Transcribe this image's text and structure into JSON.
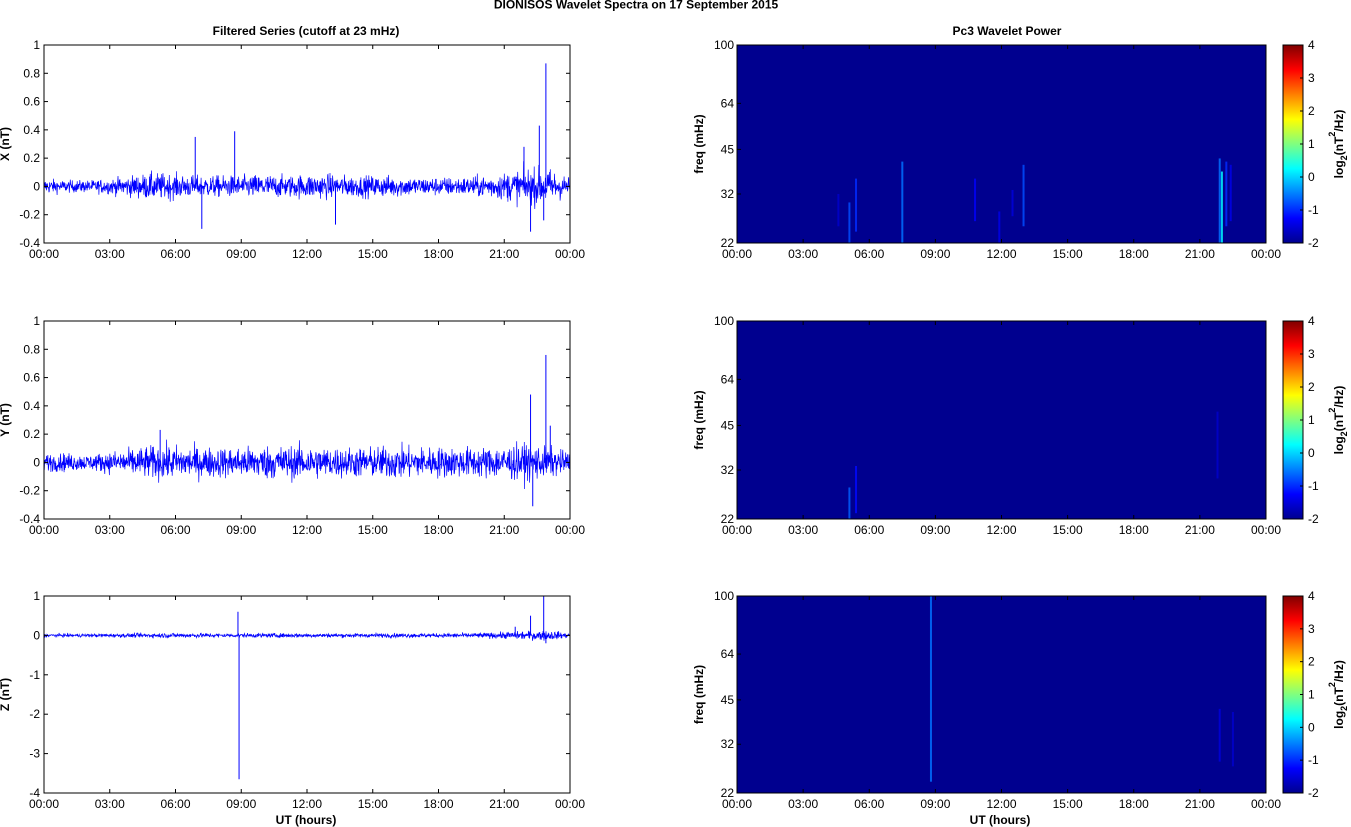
{
  "figure": {
    "title": "DIONISOS Wavelet Spectra on 17 September 2015",
    "left_title": "Filtered Series (cutoff at 23 mHz)",
    "right_title": "Pc3 Wavelet Power",
    "xlabel": "UT (hours)",
    "colorbar_label_base": "log",
    "colorbar_label_sub": "2",
    "colorbar_label_mid": "(nT",
    "colorbar_label_sup": "2",
    "colorbar_label_end": "/Hz)",
    "freq_label": "freq (mHz)"
  },
  "colors": {
    "trace": "#0000ff",
    "spectrogram_background": "#00008f",
    "axes": "#000000"
  },
  "chart_data": [
    {
      "type": "line",
      "panel": "X",
      "ylabel": "X (nT)",
      "xlim": [
        "00:00",
        "24:00"
      ],
      "xticks": [
        "00:00",
        "03:00",
        "06:00",
        "09:00",
        "12:00",
        "15:00",
        "18:00",
        "21:00",
        "00:00"
      ],
      "ylim": [
        -0.4,
        1
      ],
      "yticks": [
        "-0.4",
        "-0.2",
        "0",
        "0.2",
        "0.4",
        "0.6",
        "0.8",
        "1"
      ],
      "envelope": {
        "hours": [
          0,
          1,
          2,
          3,
          4,
          5,
          6,
          7,
          8,
          9,
          10,
          11,
          12,
          13,
          14,
          15,
          16,
          17,
          18,
          19,
          20,
          21,
          22,
          23,
          24
        ],
        "amplitude": [
          0.05,
          0.04,
          0.04,
          0.05,
          0.07,
          0.09,
          0.08,
          0.07,
          0.07,
          0.07,
          0.08,
          0.07,
          0.08,
          0.08,
          0.07,
          0.07,
          0.07,
          0.06,
          0.06,
          0.06,
          0.07,
          0.09,
          0.12,
          0.12,
          0.06
        ]
      },
      "spikes": [
        {
          "hour": 6.9,
          "value": 0.35
        },
        {
          "hour": 7.2,
          "value": -0.3
        },
        {
          "hour": 8.7,
          "value": 0.39
        },
        {
          "hour": 13.3,
          "value": -0.27
        },
        {
          "hour": 21.9,
          "value": 0.28
        },
        {
          "hour": 22.2,
          "value": -0.32
        },
        {
          "hour": 22.6,
          "value": 0.43
        },
        {
          "hour": 22.8,
          "value": -0.24
        },
        {
          "hour": 22.9,
          "value": 0.87
        }
      ]
    },
    {
      "type": "line",
      "panel": "Y",
      "ylabel": "Y (nT)",
      "xlim": [
        "00:00",
        "24:00"
      ],
      "xticks": [
        "00:00",
        "03:00",
        "06:00",
        "09:00",
        "12:00",
        "15:00",
        "18:00",
        "21:00",
        "00:00"
      ],
      "ylim": [
        -0.4,
        1
      ],
      "yticks": [
        "-0.4",
        "-0.2",
        "0",
        "0.2",
        "0.4",
        "0.6",
        "0.8",
        "1"
      ],
      "envelope": {
        "hours": [
          0,
          1,
          2,
          3,
          4,
          5,
          6,
          7,
          8,
          9,
          10,
          11,
          12,
          13,
          14,
          15,
          16,
          17,
          18,
          19,
          20,
          21,
          22,
          23,
          24
        ],
        "amplitude": [
          0.06,
          0.06,
          0.05,
          0.07,
          0.09,
          0.11,
          0.11,
          0.1,
          0.1,
          0.1,
          0.11,
          0.11,
          0.11,
          0.1,
          0.1,
          0.1,
          0.11,
          0.1,
          0.1,
          0.1,
          0.1,
          0.11,
          0.12,
          0.1,
          0.07
        ]
      },
      "spikes": [
        {
          "hour": 5.3,
          "value": 0.23
        },
        {
          "hour": 22.2,
          "value": 0.48
        },
        {
          "hour": 22.3,
          "value": -0.31
        },
        {
          "hour": 22.9,
          "value": 0.76
        },
        {
          "hour": 23.1,
          "value": 0.26
        }
      ]
    },
    {
      "type": "line",
      "panel": "Z",
      "ylabel": "Z (nT)",
      "xlim": [
        "00:00",
        "24:00"
      ],
      "xticks": [
        "00:00",
        "03:00",
        "06:00",
        "09:00",
        "12:00",
        "15:00",
        "18:00",
        "21:00",
        "00:00"
      ],
      "ylim": [
        -4,
        1
      ],
      "yticks": [
        "-4",
        "-3",
        "-2",
        "-1",
        "0",
        "1"
      ],
      "envelope": {
        "hours": [
          0,
          2,
          4,
          6,
          8,
          10,
          12,
          14,
          16,
          18,
          20,
          21,
          22,
          23,
          24
        ],
        "amplitude": [
          0.04,
          0.04,
          0.05,
          0.06,
          0.05,
          0.05,
          0.05,
          0.05,
          0.05,
          0.05,
          0.06,
          0.08,
          0.1,
          0.12,
          0.05
        ]
      },
      "spikes": [
        {
          "hour": 8.85,
          "value": 0.6
        },
        {
          "hour": 8.9,
          "value": -3.65
        },
        {
          "hour": 21.5,
          "value": 0.22
        },
        {
          "hour": 22.2,
          "value": 0.5
        },
        {
          "hour": 22.8,
          "value": 1.0
        },
        {
          "hour": 22.9,
          "value": -0.2
        }
      ]
    },
    {
      "type": "heatmap",
      "panel": "X",
      "ylabel": "freq (mHz)",
      "yscale": "log",
      "ylim": [
        22,
        100
      ],
      "yticks": [
        "22",
        "32",
        "45",
        "64",
        "100"
      ],
      "xticks": [
        "00:00",
        "03:00",
        "06:00",
        "09:00",
        "12:00",
        "15:00",
        "18:00",
        "21:00",
        "00:00"
      ],
      "colorbar": {
        "colormap": "jet",
        "range": [
          -2,
          4
        ],
        "ticks": [
          "-2",
          "-1",
          "0",
          "1",
          "2",
          "3",
          "4"
        ]
      },
      "background_level": -2,
      "features": [
        {
          "hour": 4.6,
          "fmin": 25,
          "fmax": 32,
          "level": -1.6
        },
        {
          "hour": 5.1,
          "fmin": 22,
          "fmax": 30,
          "level": -0.8
        },
        {
          "hour": 5.4,
          "fmin": 24,
          "fmax": 36,
          "level": -1.0
        },
        {
          "hour": 7.5,
          "fmin": 22,
          "fmax": 41,
          "level": -0.6
        },
        {
          "hour": 10.8,
          "fmin": 26,
          "fmax": 36,
          "level": -1.3
        },
        {
          "hour": 11.9,
          "fmin": 22,
          "fmax": 28,
          "level": -1.4
        },
        {
          "hour": 12.5,
          "fmin": 27,
          "fmax": 33,
          "level": -1.5
        },
        {
          "hour": 13.0,
          "fmin": 25,
          "fmax": 40,
          "level": -0.8
        },
        {
          "hour": 21.9,
          "fmin": 22,
          "fmax": 42,
          "level": -0.6
        },
        {
          "hour": 22.0,
          "fmin": 22,
          "fmax": 38,
          "level": 0.2
        },
        {
          "hour": 22.2,
          "fmin": 25,
          "fmax": 41,
          "level": -1.0
        },
        {
          "hour": 22.4,
          "fmin": 26,
          "fmax": 40,
          "level": -1.4
        }
      ]
    },
    {
      "type": "heatmap",
      "panel": "Y",
      "ylabel": "freq (mHz)",
      "yscale": "log",
      "ylim": [
        22,
        100
      ],
      "yticks": [
        "22",
        "32",
        "45",
        "64",
        "100"
      ],
      "xticks": [
        "00:00",
        "03:00",
        "06:00",
        "09:00",
        "12:00",
        "15:00",
        "18:00",
        "21:00",
        "00:00"
      ],
      "colorbar": {
        "colormap": "jet",
        "range": [
          -2,
          4
        ],
        "ticks": [
          "-2",
          "-1",
          "0",
          "1",
          "2",
          "3",
          "4"
        ]
      },
      "background_level": -2,
      "features": [
        {
          "hour": 5.1,
          "fmin": 22,
          "fmax": 28,
          "level": -0.7
        },
        {
          "hour": 5.4,
          "fmin": 23,
          "fmax": 33,
          "level": -1.2
        },
        {
          "hour": 21.8,
          "fmin": 30,
          "fmax": 50,
          "level": -1.6
        }
      ]
    },
    {
      "type": "heatmap",
      "panel": "Z",
      "ylabel": "freq (mHz)",
      "yscale": "log",
      "ylim": [
        22,
        100
      ],
      "yticks": [
        "22",
        "32",
        "45",
        "64",
        "100"
      ],
      "xticks": [
        "00:00",
        "03:00",
        "06:00",
        "09:00",
        "12:00",
        "15:00",
        "18:00",
        "21:00",
        "00:00"
      ],
      "colorbar": {
        "colormap": "jet",
        "range": [
          -2,
          4
        ],
        "ticks": [
          "-2",
          "-1",
          "0",
          "1",
          "2",
          "3",
          "4"
        ]
      },
      "background_level": -2,
      "features": [
        {
          "hour": 8.8,
          "fmin": 24,
          "fmax": 100,
          "level": -0.6
        },
        {
          "hour": 21.9,
          "fmin": 28,
          "fmax": 42,
          "level": -1.5
        },
        {
          "hour": 22.5,
          "fmin": 27,
          "fmax": 41,
          "level": -1.6
        }
      ]
    }
  ]
}
